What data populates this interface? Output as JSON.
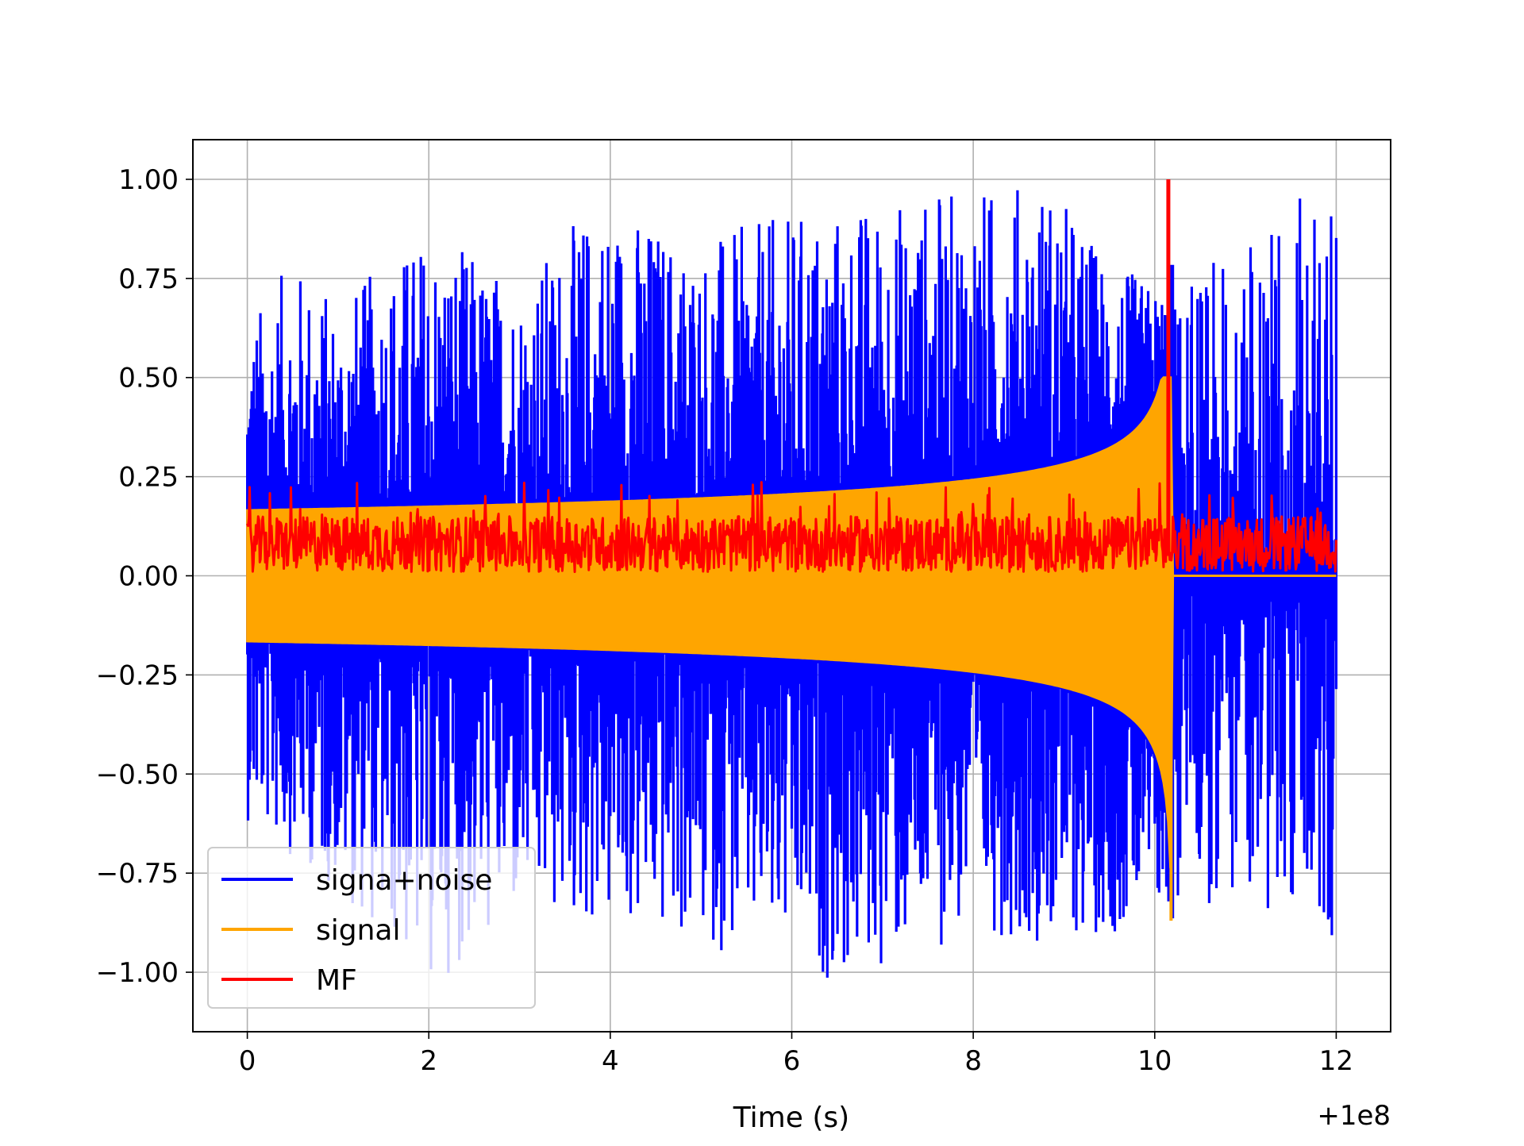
{
  "chart_data": {
    "type": "line",
    "title": "",
    "xlabel": "Time (s)",
    "ylabel": "",
    "x_offset_label": "+1e8",
    "xlim": [
      -0.6,
      12.6
    ],
    "ylim": [
      -1.15,
      1.1
    ],
    "xticks": [
      0,
      2,
      4,
      6,
      8,
      10,
      12
    ],
    "xtick_labels": [
      "0",
      "2",
      "4",
      "6",
      "8",
      "10",
      "12"
    ],
    "yticks": [
      1.0,
      0.75,
      0.5,
      0.25,
      0.0,
      -0.25,
      -0.5,
      -0.75,
      -1.0
    ],
    "ytick_labels": [
      "1.00",
      "0.75",
      "0.50",
      "0.25",
      "0.00",
      "−0.25",
      "−0.50",
      "−0.75",
      "−1.00"
    ],
    "grid": true,
    "legend_position": "lower-left",
    "series": [
      {
        "name": "signa+noise",
        "color": "#0000ff",
        "x_range": [
          0,
          12
        ],
        "upper_envelope": [
          [
            0,
            0.65
          ],
          [
            0.5,
            0.8
          ],
          [
            1,
            0.7
          ],
          [
            2,
            0.88
          ],
          [
            3,
            0.75
          ],
          [
            3.9,
            0.96
          ],
          [
            5,
            0.85
          ],
          [
            6,
            0.92
          ],
          [
            8.3,
            0.99
          ],
          [
            8.8,
            1.01
          ],
          [
            9.5,
            0.8
          ],
          [
            10.2,
            0.7
          ],
          [
            11,
            0.86
          ],
          [
            11.8,
            0.99
          ],
          [
            12,
            0.88
          ]
        ],
        "lower_envelope": [
          [
            0,
            -0.62
          ],
          [
            1,
            -0.8
          ],
          [
            2,
            -1.04
          ],
          [
            3,
            -0.88
          ],
          [
            4,
            -0.9
          ],
          [
            5.9,
            -0.98
          ],
          [
            6.6,
            -1.04
          ],
          [
            8,
            -0.9
          ],
          [
            9,
            -0.93
          ],
          [
            10,
            -0.88
          ],
          [
            11,
            -0.82
          ],
          [
            12,
            -0.92
          ]
        ]
      },
      {
        "name": "signal",
        "color": "#ffa500",
        "x_range": [
          0,
          10.2
        ],
        "amplitude_start": 0.165,
        "amplitude_at_9": 0.26,
        "amplitude_at_10": 0.38,
        "peak_positive": 0.5,
        "peak_negative": -0.87,
        "merger_time": 10.2
      },
      {
        "name": "MF",
        "color": "#ff0000",
        "x_range": [
          0,
          12
        ],
        "baseline_mean": 0.08,
        "baseline_max": 0.24,
        "peak_time": 10.15,
        "peak_value": 1.0
      }
    ]
  }
}
